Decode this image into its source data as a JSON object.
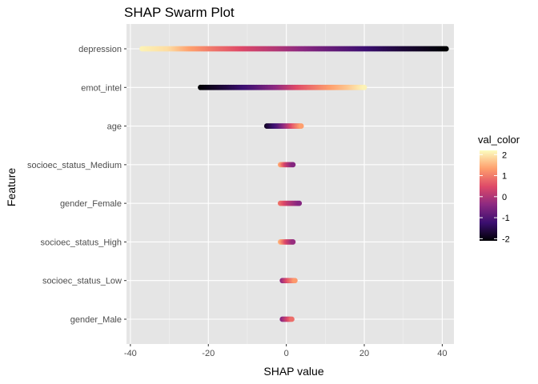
{
  "chart_data": {
    "type": "scatter",
    "subtype": "beeswarm",
    "title": "SHAP Swarm Plot",
    "xlabel": "SHAP value",
    "ylabel": "Feature",
    "xlim": [
      -41,
      43
    ],
    "x_ticks": [
      -40,
      -20,
      0,
      20,
      40
    ],
    "grid": true,
    "legend": {
      "title": "val_color",
      "position": "right",
      "ticks": [
        2,
        1,
        0,
        -1,
        -2
      ],
      "range": [
        -2.1,
        2.2
      ],
      "colormap": [
        "#000004",
        "#3b0f70",
        "#8c2981",
        "#de4968",
        "#fe9f6d",
        "#fcfdbf"
      ]
    },
    "features": [
      {
        "name": "depression",
        "x_range": [
          -37,
          41
        ],
        "color_stops": [
          [
            -37,
            2.1
          ],
          [
            -30,
            1.9
          ],
          [
            -25,
            1.4
          ],
          [
            -18,
            0.9
          ],
          [
            -10,
            0.4
          ],
          [
            -2,
            0.0
          ],
          [
            8,
            -0.6
          ],
          [
            18,
            -1.1
          ],
          [
            28,
            -1.6
          ],
          [
            41,
            -2.1
          ]
        ]
      },
      {
        "name": "emot_intel",
        "x_range": [
          -22,
          20
        ],
        "color_stops": [
          [
            -22,
            -2.1
          ],
          [
            -15,
            -1.6
          ],
          [
            -8,
            -1.0
          ],
          [
            -2,
            -0.3
          ],
          [
            3,
            0.5
          ],
          [
            10,
            1.2
          ],
          [
            16,
            1.7
          ],
          [
            20,
            2.1
          ]
        ]
      },
      {
        "name": "age",
        "x_range": [
          -5,
          4
        ],
        "color_stops": [
          [
            -5,
            -1.8
          ],
          [
            -2,
            -1.0
          ],
          [
            0,
            -0.2
          ],
          [
            2,
            0.7
          ],
          [
            4,
            1.4
          ]
        ]
      },
      {
        "name": "socioec_status_Medium",
        "x_range": [
          -1.5,
          2
        ],
        "color_stops": [
          [
            -1.5,
            1.4
          ],
          [
            0,
            0.3
          ],
          [
            2,
            -0.6
          ]
        ]
      },
      {
        "name": "gender_Female",
        "x_range": [
          -1.5,
          3.5
        ],
        "color_stops": [
          [
            -1.5,
            0.9
          ],
          [
            0.5,
            0.2
          ],
          [
            3.5,
            -0.5
          ]
        ]
      },
      {
        "name": "socioec_status_High",
        "x_range": [
          -1.5,
          2
        ],
        "color_stops": [
          [
            -1.5,
            1.5
          ],
          [
            0,
            0.5
          ],
          [
            2,
            -0.4
          ]
        ]
      },
      {
        "name": "socioec_status_Low",
        "x_range": [
          -1,
          2.5
        ],
        "color_stops": [
          [
            -1,
            -0.3
          ],
          [
            0.5,
            0.6
          ],
          [
            2.5,
            1.4
          ]
        ]
      },
      {
        "name": "gender_Male",
        "x_range": [
          -1,
          1.5
        ],
        "color_stops": [
          [
            -1,
            -0.4
          ],
          [
            0.3,
            0.3
          ],
          [
            1.5,
            0.9
          ]
        ]
      }
    ]
  }
}
